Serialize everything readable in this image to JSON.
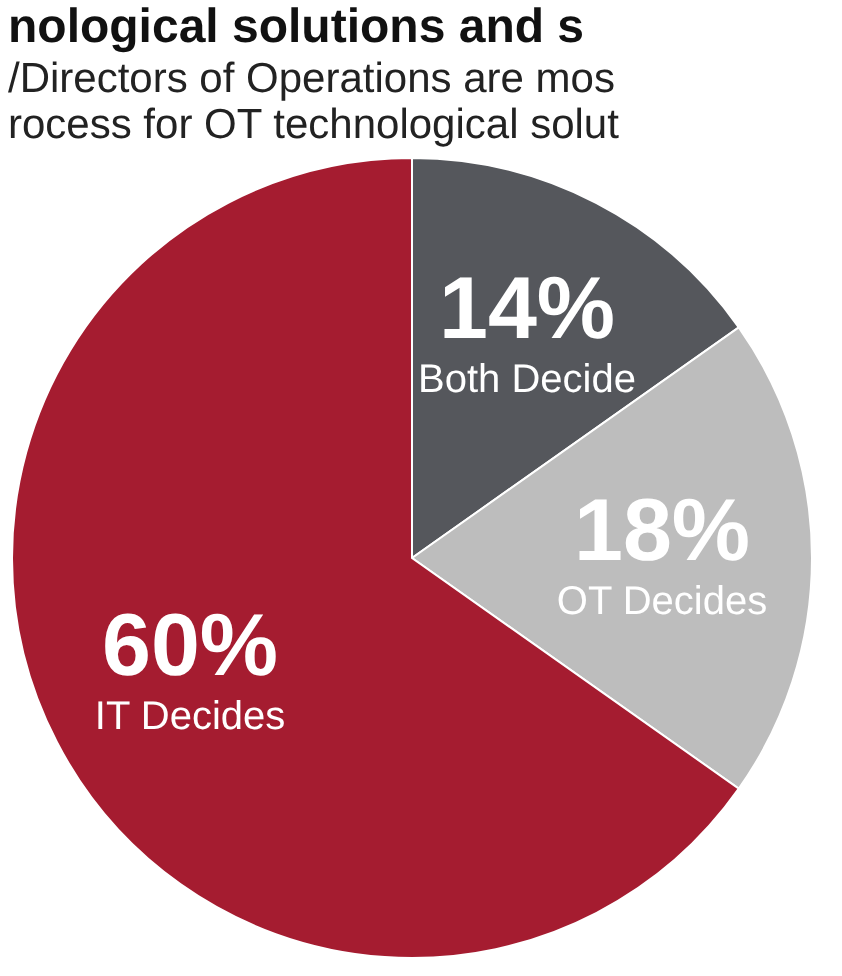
{
  "chart_data": {
    "type": "pie",
    "title": "nological solutions and s",
    "subtitle": [
      "/Directors of Operations are mos",
      "rocess for OT technological solut"
    ],
    "categories": [
      "Both Decide",
      "OT Decides",
      "IT Decides"
    ],
    "values": [
      14,
      18,
      60
    ],
    "value_labels": [
      "14%",
      "18%",
      "60%"
    ],
    "colors": [
      "#55575c",
      "#bdbdbd",
      "#a51c30"
    ]
  }
}
